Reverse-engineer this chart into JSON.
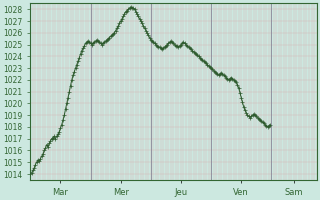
{
  "ylim": [
    1013.5,
    1028.5
  ],
  "yticks": [
    1014,
    1015,
    1016,
    1017,
    1018,
    1019,
    1020,
    1021,
    1022,
    1023,
    1024,
    1025,
    1026,
    1027,
    1028
  ],
  "xtick_labels": [
    "Mar",
    "Mer",
    "Jeu",
    "Ven",
    "Sam"
  ],
  "xtick_positions": [
    24,
    72,
    120,
    168,
    210
  ],
  "xlim": [
    0,
    228
  ],
  "bg_color": "#cce8e0",
  "line_color": "#2d5a2d",
  "marker_color": "#2d5a2d",
  "tick_color": "#336633",
  "tick_fontsize": 5.5,
  "pressure_data": [
    1014.0,
    1014.1,
    1014.3,
    1014.5,
    1014.8,
    1015.0,
    1015.2,
    1015.1,
    1015.3,
    1015.5,
    1015.7,
    1016.0,
    1016.2,
    1016.5,
    1016.3,
    1016.6,
    1016.8,
    1017.0,
    1017.1,
    1017.2,
    1017.0,
    1017.2,
    1017.4,
    1017.6,
    1017.9,
    1018.2,
    1018.6,
    1019.0,
    1019.5,
    1020.0,
    1020.5,
    1021.0,
    1021.5,
    1022.0,
    1022.4,
    1022.7,
    1023.0,
    1023.3,
    1023.6,
    1023.9,
    1024.2,
    1024.5,
    1024.7,
    1024.9,
    1025.1,
    1025.2,
    1025.3,
    1025.2,
    1025.1,
    1025.0,
    1025.1,
    1025.2,
    1025.3,
    1025.4,
    1025.3,
    1025.2,
    1025.1,
    1025.0,
    1025.1,
    1025.2,
    1025.3,
    1025.4,
    1025.5,
    1025.6,
    1025.7,
    1025.8,
    1025.9,
    1026.0,
    1026.2,
    1026.4,
    1026.6,
    1026.8,
    1027.0,
    1027.2,
    1027.4,
    1027.6,
    1027.8,
    1027.9,
    1028.0,
    1028.1,
    1028.2,
    1028.15,
    1028.1,
    1028.0,
    1027.8,
    1027.6,
    1027.4,
    1027.2,
    1027.0,
    1026.8,
    1026.6,
    1026.4,
    1026.2,
    1026.0,
    1025.8,
    1025.6,
    1025.4,
    1025.3,
    1025.2,
    1025.1,
    1025.0,
    1024.9,
    1024.8,
    1024.8,
    1024.7,
    1024.6,
    1024.7,
    1024.8,
    1024.9,
    1025.0,
    1025.1,
    1025.2,
    1025.3,
    1025.2,
    1025.1,
    1025.0,
    1024.9,
    1024.9,
    1024.8,
    1024.9,
    1025.0,
    1025.1,
    1025.2,
    1025.1,
    1025.0,
    1024.9,
    1024.8,
    1024.7,
    1024.6,
    1024.5,
    1024.4,
    1024.3,
    1024.2,
    1024.1,
    1024.0,
    1023.9,
    1023.8,
    1023.7,
    1023.6,
    1023.5,
    1023.4,
    1023.3,
    1023.2,
    1023.1,
    1023.0,
    1022.9,
    1022.8,
    1022.7,
    1022.6,
    1022.5,
    1022.4,
    1022.5,
    1022.6,
    1022.5,
    1022.4,
    1022.3,
    1022.2,
    1022.1,
    1022.0,
    1022.1,
    1022.2,
    1022.1,
    1022.0,
    1021.9,
    1021.8,
    1021.6,
    1021.3,
    1020.9,
    1020.5,
    1020.1,
    1019.7,
    1019.4,
    1019.2,
    1019.0,
    1018.9,
    1018.8,
    1018.9,
    1019.0,
    1019.1,
    1019.0,
    1018.9,
    1018.8,
    1018.7,
    1018.6,
    1018.5,
    1018.4,
    1018.3,
    1018.2,
    1018.1,
    1018.0,
    1018.1,
    1018.2
  ]
}
